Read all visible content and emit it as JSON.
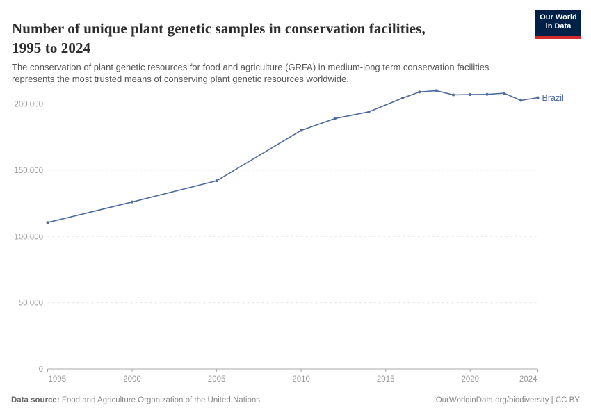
{
  "header": {
    "title_lines": [
      "Number of unique plant genetic samples in conservation facilities,",
      "1995 to 2024"
    ],
    "subtitle": "The conservation of plant genetic resources for food and agriculture (GRFA) in medium-long term conservation facilities represents the most trusted means of conserving plant genetic resources worldwide.",
    "logo": {
      "line1": "Our World",
      "line2": "in Data",
      "bg_color": "#002147",
      "accent_color": "#d42b2b"
    }
  },
  "chart_data": {
    "type": "line",
    "title": "Number of unique plant genetic samples in conservation facilities, 1995 to 2024",
    "series": [
      {
        "name": "Brazil",
        "color": "#4C6A9C",
        "x": [
          1995,
          2000,
          2005,
          2010,
          2012,
          2014,
          2016,
          2017,
          2018,
          2019,
          2020,
          2021,
          2022,
          2023,
          2024
        ],
        "y": [
          110500,
          126000,
          142000,
          180000,
          189000,
          194000,
          204400,
          209000,
          210000,
          206800,
          207100,
          207200,
          208100,
          202600,
          204700
        ]
      }
    ],
    "xlim": [
      1995,
      2024
    ],
    "ylim": [
      0,
      200000
    ],
    "x_ticks": [
      1995,
      2000,
      2005,
      2010,
      2015,
      2020,
      2024
    ],
    "y_ticks": [
      0,
      50000,
      100000,
      150000,
      200000
    ],
    "y_tick_labels": [
      "0",
      "50,000",
      "100,000",
      "150,000",
      "200,000"
    ],
    "grid": "horizontal-dashed",
    "legend": "end-of-line-label",
    "axis_color": "#a8a8a8",
    "grid_color": "#e3e3e3",
    "tick_label_color": "#999999"
  },
  "footer": {
    "source_label": "Data source:",
    "source_text": " Food and Agriculture Organization of the United Nations",
    "attribution": "OurWorldinData.org/biodiversity | CC BY"
  }
}
